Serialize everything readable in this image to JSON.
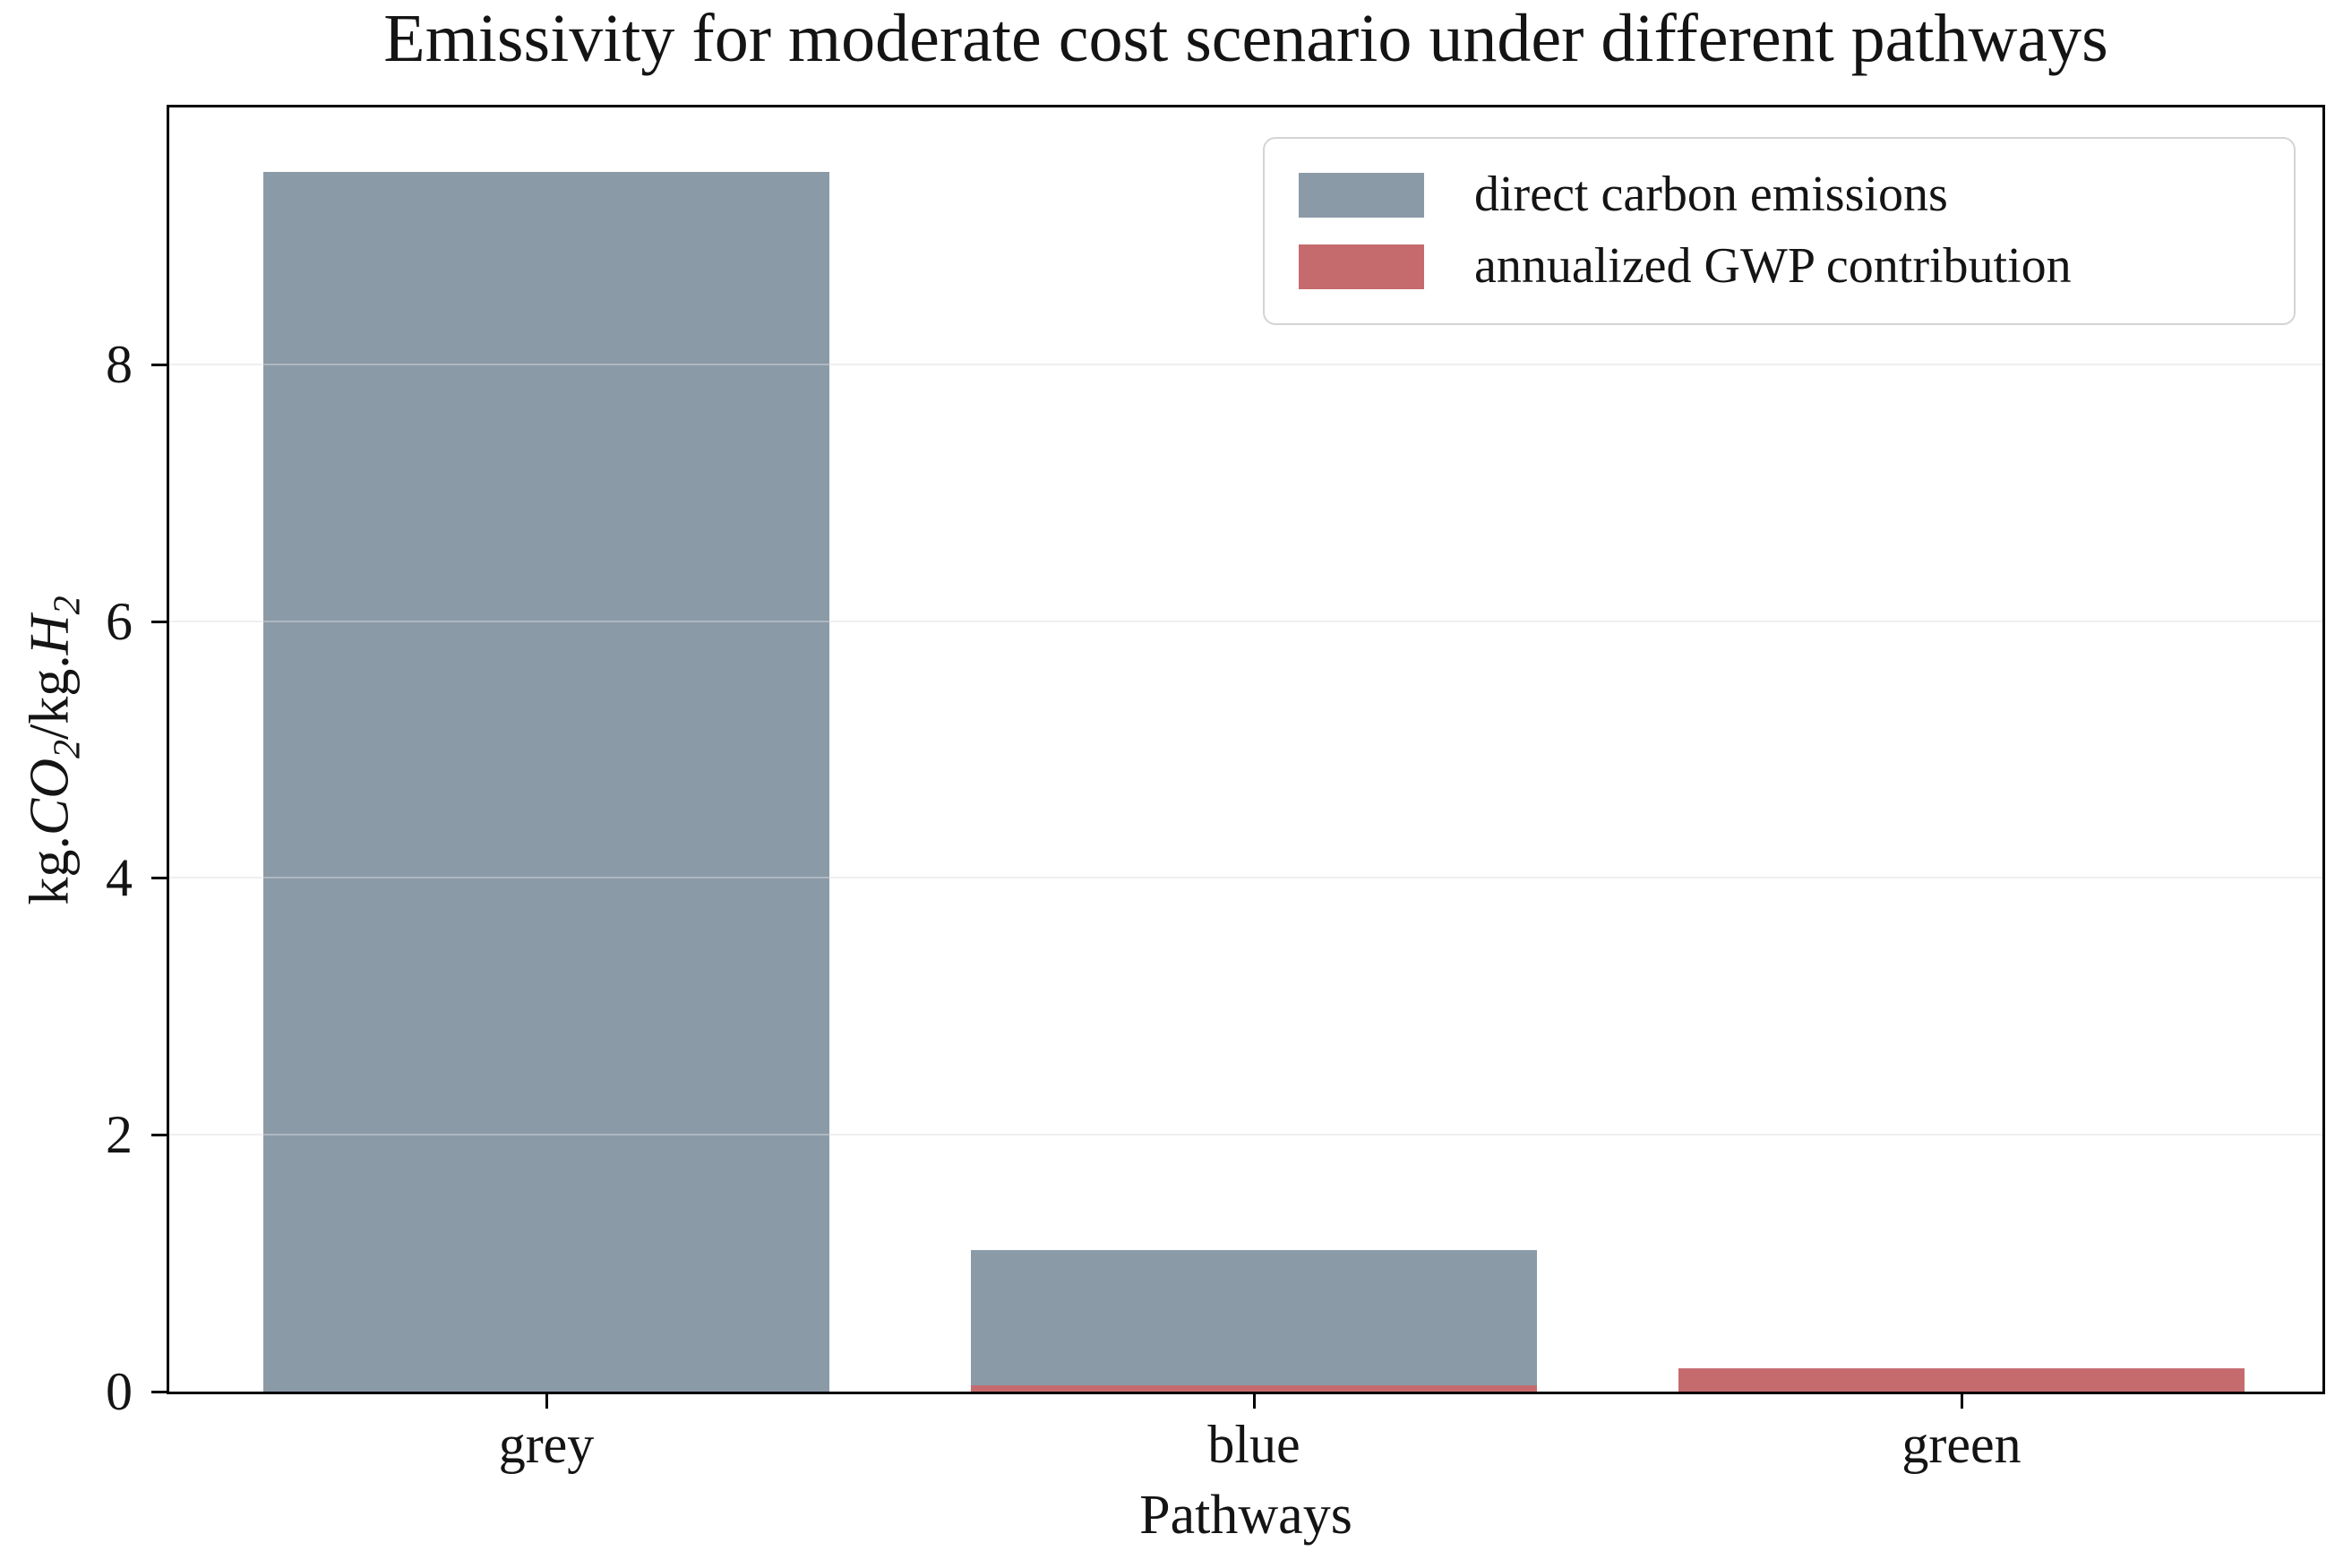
{
  "title": "Emissivity for moderate cost scenario under different pathways",
  "axes": {
    "xlabel": "Pathways",
    "ylabel_parts": {
      "u1": "kg.",
      "m1": "CO",
      "s1": "2",
      "u2": "/kg.",
      "m2": "H",
      "s2": "2"
    }
  },
  "colors": {
    "direct_bar": "#8b9aa7",
    "gwp_bar": "#c56b6e",
    "gridline": "#e8e8e8",
    "spine": "#000000",
    "legend_border": "#d4d4d4"
  },
  "chart_data": {
    "type": "bar",
    "title": "Emissivity for moderate cost scenario under different pathways",
    "categories": [
      "grey",
      "blue",
      "green"
    ],
    "series": [
      {
        "name": "direct carbon emissions",
        "color": "#8b9aa7",
        "values": [
          9.5,
          1.1,
          0.0
        ]
      },
      {
        "name": "annualized GWP contribution",
        "color": "#c56b6e",
        "values": [
          0.0,
          0.05,
          0.18
        ]
      }
    ],
    "xlabel": "Pathways",
    "ylabel": "kg.CO2/kg.H2",
    "ylim": [
      0,
      10
    ],
    "yticks": [
      0,
      2,
      4,
      6,
      8
    ],
    "ytick_labels": [
      "0",
      "2",
      "4",
      "6",
      "8"
    ],
    "grid": true,
    "legend_position": "upper right"
  }
}
